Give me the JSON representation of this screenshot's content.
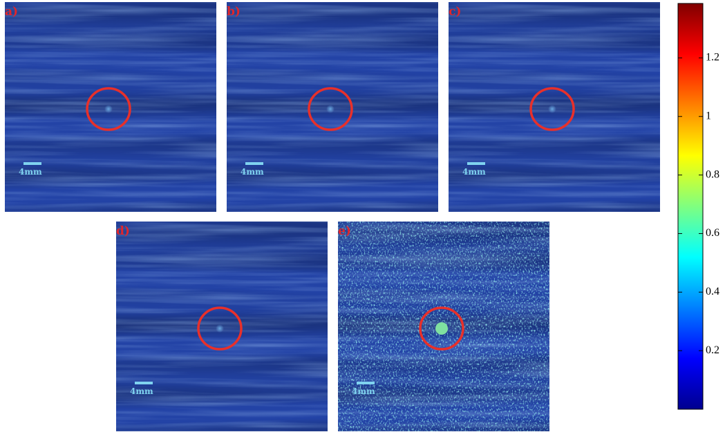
{
  "panels": [
    {
      "label": "a)",
      "scale_bar": "4mm"
    },
    {
      "label": "b)",
      "scale_bar": "4mm"
    },
    {
      "label": "c)",
      "scale_bar": "4mm"
    },
    {
      "label": "d)",
      "scale_bar": "4mm"
    },
    {
      "label": "e)",
      "scale_bar": "4mm"
    }
  ],
  "colorbar": {
    "lim": [
      0,
      1.386
    ],
    "ticks": [
      0.2,
      0.4,
      0.6,
      0.8,
      1,
      1.2
    ]
  }
}
